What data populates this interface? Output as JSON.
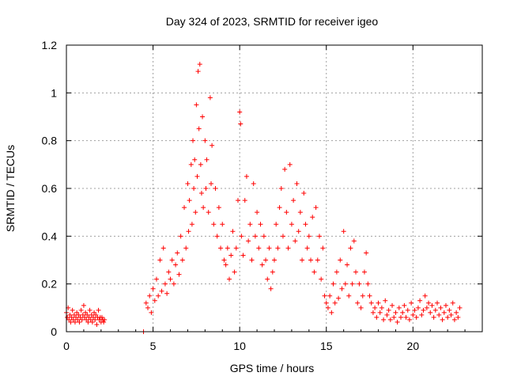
{
  "chart_data": {
    "type": "scatter",
    "title": "Day 324 of 2023, SRMTID for receiver igeo",
    "xlabel": "GPS time / hours",
    "ylabel": "SRMTID / TECUs",
    "xlim": [
      0,
      24
    ],
    "ylim": [
      0,
      1.2
    ],
    "xticks": [
      0,
      5,
      10,
      15,
      20
    ],
    "xtick_labels": [
      "0",
      "5",
      "10",
      "15",
      "20"
    ],
    "yticks": [
      0,
      0.2,
      0.4,
      0.6,
      0.8,
      1.0,
      1.2
    ],
    "ytick_labels": [
      "0",
      "0.2",
      "0.4",
      "0.6",
      "0.8",
      "1",
      "1.2"
    ],
    "grid": true,
    "marker": "+",
    "color": "#ff0000",
    "series": [
      {
        "name": "SRMTID",
        "points": [
          [
            0.0,
            0.08
          ],
          [
            0.05,
            0.06
          ],
          [
            0.1,
            0.1
          ],
          [
            0.15,
            0.05
          ],
          [
            0.2,
            0.07
          ],
          [
            0.25,
            0.04
          ],
          [
            0.3,
            0.06
          ],
          [
            0.35,
            0.09
          ],
          [
            0.4,
            0.05
          ],
          [
            0.45,
            0.07
          ],
          [
            0.5,
            0.04
          ],
          [
            0.55,
            0.06
          ],
          [
            0.6,
            0.08
          ],
          [
            0.65,
            0.05
          ],
          [
            0.7,
            0.07
          ],
          [
            0.75,
            0.04
          ],
          [
            0.8,
            0.06
          ],
          [
            0.85,
            0.09
          ],
          [
            0.9,
            0.05
          ],
          [
            0.95,
            0.07
          ],
          [
            1.0,
            0.11
          ],
          [
            1.05,
            0.06
          ],
          [
            1.1,
            0.08
          ],
          [
            1.15,
            0.05
          ],
          [
            1.2,
            0.07
          ],
          [
            1.25,
            0.04
          ],
          [
            1.3,
            0.06
          ],
          [
            1.35,
            0.09
          ],
          [
            1.4,
            0.05
          ],
          [
            1.45,
            0.07
          ],
          [
            1.5,
            0.04
          ],
          [
            1.55,
            0.06
          ],
          [
            1.6,
            0.08
          ],
          [
            1.65,
            0.05
          ],
          [
            1.7,
            0.07
          ],
          [
            1.75,
            0.03
          ],
          [
            1.8,
            0.06
          ],
          [
            1.85,
            0.09
          ],
          [
            1.9,
            0.05
          ],
          [
            1.95,
            0.06
          ],
          [
            2.0,
            0.04
          ],
          [
            2.05,
            0.06
          ],
          [
            2.1,
            0.05
          ],
          [
            2.15,
            0.04
          ],
          [
            2.2,
            0.05
          ],
          [
            4.45,
            0.0
          ],
          [
            4.6,
            0.12
          ],
          [
            4.7,
            0.1
          ],
          [
            4.8,
            0.15
          ],
          [
            4.9,
            0.08
          ],
          [
            5.0,
            0.18
          ],
          [
            5.1,
            0.13
          ],
          [
            5.2,
            0.22
          ],
          [
            5.3,
            0.15
          ],
          [
            5.4,
            0.3
          ],
          [
            5.5,
            0.17
          ],
          [
            5.6,
            0.35
          ],
          [
            5.7,
            0.2
          ],
          [
            5.8,
            0.16
          ],
          [
            5.9,
            0.25
          ],
          [
            6.0,
            0.22
          ],
          [
            6.1,
            0.3
          ],
          [
            6.2,
            0.2
          ],
          [
            6.3,
            0.28
          ],
          [
            6.4,
            0.33
          ],
          [
            6.5,
            0.24
          ],
          [
            6.6,
            0.4
          ],
          [
            6.7,
            0.3
          ],
          [
            6.8,
            0.52
          ],
          [
            6.9,
            0.35
          ],
          [
            7.0,
            0.62
          ],
          [
            7.05,
            0.42
          ],
          [
            7.1,
            0.55
          ],
          [
            7.2,
            0.7
          ],
          [
            7.25,
            0.45
          ],
          [
            7.3,
            0.8
          ],
          [
            7.35,
            0.6
          ],
          [
            7.4,
            0.72
          ],
          [
            7.45,
            0.5
          ],
          [
            7.5,
            0.95
          ],
          [
            7.55,
            0.65
          ],
          [
            7.6,
            1.09
          ],
          [
            7.65,
            0.85
          ],
          [
            7.7,
            1.12
          ],
          [
            7.75,
            0.7
          ],
          [
            7.8,
            0.58
          ],
          [
            7.85,
            0.9
          ],
          [
            7.9,
            0.52
          ],
          [
            8.0,
            0.8
          ],
          [
            8.05,
            0.6
          ],
          [
            8.1,
            0.72
          ],
          [
            8.2,
            0.5
          ],
          [
            8.3,
            0.98
          ],
          [
            8.35,
            0.62
          ],
          [
            8.4,
            0.78
          ],
          [
            8.5,
            0.45
          ],
          [
            8.6,
            0.6
          ],
          [
            8.7,
            0.4
          ],
          [
            8.8,
            0.52
          ],
          [
            8.9,
            0.35
          ],
          [
            9.0,
            0.45
          ],
          [
            9.1,
            0.3
          ],
          [
            9.2,
            0.28
          ],
          [
            9.3,
            0.35
          ],
          [
            9.4,
            0.22
          ],
          [
            9.5,
            0.32
          ],
          [
            9.6,
            0.42
          ],
          [
            9.7,
            0.25
          ],
          [
            9.8,
            0.35
          ],
          [
            9.9,
            0.55
          ],
          [
            10.0,
            0.92
          ],
          [
            10.05,
            0.87
          ],
          [
            10.1,
            0.4
          ],
          [
            10.2,
            0.32
          ],
          [
            10.3,
            0.55
          ],
          [
            10.4,
            0.65
          ],
          [
            10.5,
            0.38
          ],
          [
            10.6,
            0.45
          ],
          [
            10.7,
            0.3
          ],
          [
            10.8,
            0.62
          ],
          [
            10.9,
            0.4
          ],
          [
            11.0,
            0.5
          ],
          [
            11.1,
            0.35
          ],
          [
            11.2,
            0.45
          ],
          [
            11.3,
            0.28
          ],
          [
            11.4,
            0.4
          ],
          [
            11.5,
            0.3
          ],
          [
            11.6,
            0.22
          ],
          [
            11.7,
            0.35
          ],
          [
            11.8,
            0.18
          ],
          [
            11.9,
            0.25
          ],
          [
            12.0,
            0.3
          ],
          [
            12.1,
            0.45
          ],
          [
            12.2,
            0.35
          ],
          [
            12.3,
            0.52
          ],
          [
            12.4,
            0.6
          ],
          [
            12.5,
            0.4
          ],
          [
            12.6,
            0.68
          ],
          [
            12.7,
            0.5
          ],
          [
            12.8,
            0.35
          ],
          [
            12.9,
            0.7
          ],
          [
            13.0,
            0.45
          ],
          [
            13.1,
            0.55
          ],
          [
            13.2,
            0.38
          ],
          [
            13.3,
            0.62
          ],
          [
            13.4,
            0.42
          ],
          [
            13.5,
            0.5
          ],
          [
            13.6,
            0.3
          ],
          [
            13.7,
            0.58
          ],
          [
            13.8,
            0.45
          ],
          [
            13.9,
            0.35
          ],
          [
            14.0,
            0.4
          ],
          [
            14.1,
            0.3
          ],
          [
            14.2,
            0.48
          ],
          [
            14.3,
            0.25
          ],
          [
            14.4,
            0.52
          ],
          [
            14.5,
            0.3
          ],
          [
            14.6,
            0.4
          ],
          [
            14.7,
            0.22
          ],
          [
            14.8,
            0.35
          ],
          [
            14.9,
            0.15
          ],
          [
            15.0,
            0.12
          ],
          [
            15.1,
            0.1
          ],
          [
            15.2,
            0.15
          ],
          [
            15.3,
            0.08
          ],
          [
            15.4,
            0.2
          ],
          [
            15.5,
            0.12
          ],
          [
            15.6,
            0.25
          ],
          [
            15.7,
            0.14
          ],
          [
            15.8,
            0.3
          ],
          [
            15.9,
            0.18
          ],
          [
            16.0,
            0.42
          ],
          [
            16.1,
            0.2
          ],
          [
            16.2,
            0.28
          ],
          [
            16.3,
            0.15
          ],
          [
            16.4,
            0.35
          ],
          [
            16.5,
            0.2
          ],
          [
            16.6,
            0.38
          ],
          [
            16.7,
            0.25
          ],
          [
            16.8,
            0.12
          ],
          [
            16.9,
            0.2
          ],
          [
            17.0,
            0.1
          ],
          [
            17.1,
            0.15
          ],
          [
            17.2,
            0.25
          ],
          [
            17.3,
            0.33
          ],
          [
            17.4,
            0.2
          ],
          [
            17.5,
            0.15
          ],
          [
            17.6,
            0.12
          ],
          [
            17.7,
            0.08
          ],
          [
            17.8,
            0.1
          ],
          [
            17.9,
            0.06
          ],
          [
            18.0,
            0.12
          ],
          [
            18.1,
            0.08
          ],
          [
            18.2,
            0.1
          ],
          [
            18.3,
            0.05
          ],
          [
            18.4,
            0.13
          ],
          [
            18.5,
            0.07
          ],
          [
            18.6,
            0.09
          ],
          [
            18.7,
            0.05
          ],
          [
            18.8,
            0.11
          ],
          [
            18.9,
            0.06
          ],
          [
            19.0,
            0.08
          ],
          [
            19.1,
            0.04
          ],
          [
            19.2,
            0.1
          ],
          [
            19.3,
            0.06
          ],
          [
            19.4,
            0.08
          ],
          [
            19.5,
            0.11
          ],
          [
            19.6,
            0.06
          ],
          [
            19.7,
            0.09
          ],
          [
            19.8,
            0.05
          ],
          [
            19.9,
            0.12
          ],
          [
            20.0,
            0.07
          ],
          [
            20.1,
            0.09
          ],
          [
            20.2,
            0.06
          ],
          [
            20.3,
            0.1
          ],
          [
            20.4,
            0.13
          ],
          [
            20.5,
            0.07
          ],
          [
            20.6,
            0.09
          ],
          [
            20.7,
            0.15
          ],
          [
            20.8,
            0.1
          ],
          [
            20.9,
            0.12
          ],
          [
            21.0,
            0.08
          ],
          [
            21.1,
            0.11
          ],
          [
            21.2,
            0.06
          ],
          [
            21.3,
            0.09
          ],
          [
            21.4,
            0.12
          ],
          [
            21.5,
            0.07
          ],
          [
            21.6,
            0.1
          ],
          [
            21.7,
            0.05
          ],
          [
            21.8,
            0.08
          ],
          [
            21.9,
            0.11
          ],
          [
            22.0,
            0.06
          ],
          [
            22.1,
            0.09
          ],
          [
            22.2,
            0.07
          ],
          [
            22.3,
            0.12
          ],
          [
            22.4,
            0.05
          ],
          [
            22.5,
            0.08
          ],
          [
            22.6,
            0.06
          ],
          [
            22.7,
            0.1
          ]
        ]
      }
    ]
  }
}
